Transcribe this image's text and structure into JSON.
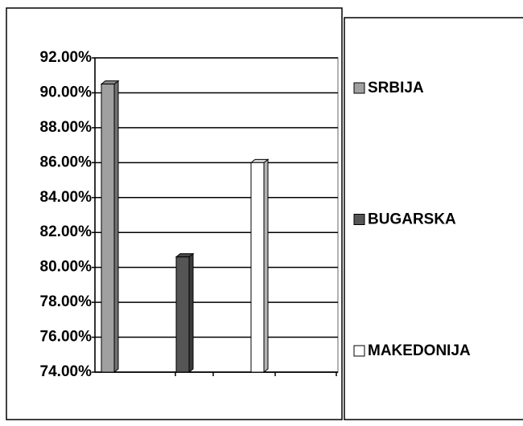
{
  "chart_data": {
    "type": "bar",
    "categories": [
      null
    ],
    "series": [
      {
        "name": "SRBIJA",
        "color": "#a0a0a0",
        "values": [
          90.5
        ]
      },
      {
        "name": "BUGARSKA",
        "color": "#555555",
        "values": [
          80.6
        ]
      },
      {
        "name": "MAKEDONIJA",
        "color": "#ffffff",
        "values": [
          86.0
        ]
      }
    ],
    "ylim": [
      74,
      92
    ],
    "yticks": [
      {
        "value": 74,
        "label": "74.00%"
      },
      {
        "value": 76,
        "label": "76.00%"
      },
      {
        "value": 78,
        "label": "78.00%"
      },
      {
        "value": 80,
        "label": "80.00%"
      },
      {
        "value": 82,
        "label": "82.00%"
      },
      {
        "value": 84,
        "label": "84.00%"
      },
      {
        "value": 86,
        "label": "86.00%"
      },
      {
        "value": 88,
        "label": "88.00%"
      },
      {
        "value": 90,
        "label": "90.00%"
      },
      {
        "value": 92,
        "label": "92.00%"
      }
    ],
    "grid": true,
    "legend": "right"
  }
}
